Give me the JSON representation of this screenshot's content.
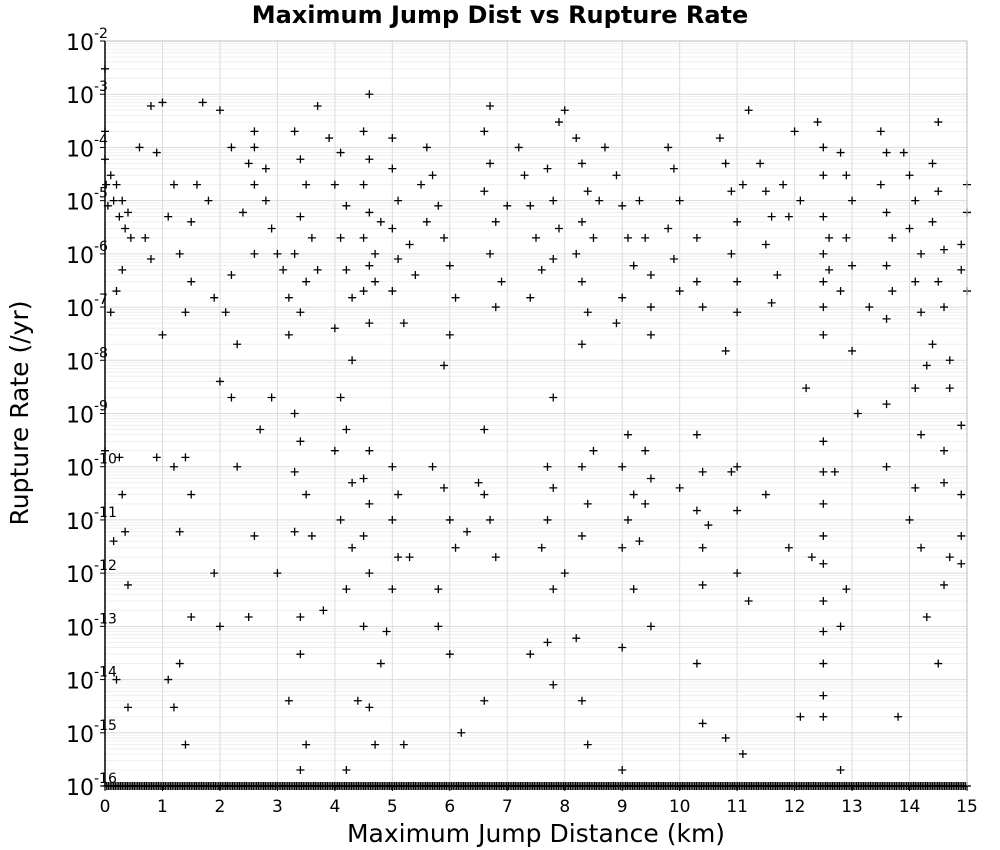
{
  "chart_data": {
    "type": "scatter",
    "title": "Maximum Jump Dist vs Rupture Rate",
    "xlabel": "Maximum Jump Distance (km)",
    "ylabel": "Rupture Rate (/yr)",
    "xlim": [
      0,
      15
    ],
    "ylim": [
      1e-16,
      0.01
    ],
    "y_scale": "log",
    "grid": true,
    "marker": "plus",
    "marker_color": "#000000",
    "x_ticks": [
      "0",
      "1",
      "2",
      "3",
      "4",
      "5",
      "6",
      "7",
      "8",
      "9",
      "10",
      "11",
      "12",
      "13",
      "14",
      "15"
    ],
    "y_ticks": [
      {
        "base": "10",
        "exp": "-16"
      },
      {
        "base": "10",
        "exp": "-15"
      },
      {
        "base": "10",
        "exp": "-14"
      },
      {
        "base": "10",
        "exp": "-13"
      },
      {
        "base": "10",
        "exp": "-12"
      },
      {
        "base": "10",
        "exp": "-11"
      },
      {
        "base": "10",
        "exp": "-10"
      },
      {
        "base": "10",
        "exp": "-9"
      },
      {
        "base": "10",
        "exp": "-8"
      },
      {
        "base": "10",
        "exp": "-7"
      },
      {
        "base": "10",
        "exp": "-6"
      },
      {
        "base": "10",
        "exp": "-5"
      },
      {
        "base": "10",
        "exp": "-4"
      },
      {
        "base": "10",
        "exp": "-3"
      },
      {
        "base": "10",
        "exp": "-2"
      }
    ],
    "points": [
      [
        0.0,
        0.003
      ],
      [
        0.0,
        0.0002
      ],
      [
        0.0,
        6e-05
      ],
      [
        0.02,
        2e-05
      ],
      [
        0.05,
        8e-06
      ],
      [
        0.1,
        3e-05
      ],
      [
        0.15,
        1e-05
      ],
      [
        0.2,
        2e-05
      ],
      [
        0.25,
        5e-06
      ],
      [
        0.3,
        1e-05
      ],
      [
        0.35,
        3e-06
      ],
      [
        0.4,
        6e-06
      ],
      [
        0.45,
        2e-06
      ],
      [
        0.3,
        5e-07
      ],
      [
        0.2,
        2e-07
      ],
      [
        0.1,
        8e-08
      ],
      [
        0.25,
        1.5e-10
      ],
      [
        0.3,
        3e-11
      ],
      [
        0.35,
        6e-12
      ],
      [
        0.4,
        6e-13
      ],
      [
        0.2,
        1e-14
      ],
      [
        0.4,
        3e-15
      ],
      [
        0.0,
        2e-10
      ],
      [
        0.15,
        4e-12
      ],
      [
        0.8,
        0.0006
      ],
      [
        1.0,
        0.0007
      ],
      [
        0.6,
        0.0001
      ],
      [
        0.9,
        8e-05
      ],
      [
        1.2,
        2e-05
      ],
      [
        1.1,
        5e-06
      ],
      [
        0.8,
        8e-07
      ],
      [
        0.7,
        2e-06
      ],
      [
        1.3,
        1e-06
      ],
      [
        1.5,
        3e-07
      ],
      [
        1.4,
        8e-08
      ],
      [
        1.0,
        3e-08
      ],
      [
        1.6,
        2e-05
      ],
      [
        1.8,
        1e-05
      ],
      [
        1.5,
        4e-06
      ],
      [
        0.9,
        1.5e-10
      ],
      [
        1.2,
        1e-10
      ],
      [
        1.4,
        1.5e-10
      ],
      [
        1.5,
        3e-11
      ],
      [
        1.3,
        6e-12
      ],
      [
        1.5,
        1.5e-13
      ],
      [
        1.3,
        2e-14
      ],
      [
        1.2,
        3e-15
      ],
      [
        1.4,
        6e-16
      ],
      [
        1.1,
        1e-14
      ],
      [
        1.9,
        1e-12
      ],
      [
        1.7,
        0.0007
      ],
      [
        2.0,
        0.0005
      ],
      [
        2.2,
        0.0001
      ],
      [
        2.5,
        5e-05
      ],
      [
        2.6,
        2e-05
      ],
      [
        2.4,
        6e-06
      ],
      [
        2.6,
        1e-06
      ],
      [
        2.2,
        4e-07
      ],
      [
        1.9,
        1.5e-07
      ],
      [
        2.1,
        8e-08
      ],
      [
        2.3,
        2e-08
      ],
      [
        2.0,
        4e-09
      ],
      [
        2.2,
        2e-09
      ],
      [
        2.3,
        1e-10
      ],
      [
        2.0,
        1e-13
      ],
      [
        2.6,
        0.0002
      ],
      [
        2.6,
        0.0001
      ],
      [
        2.8,
        4e-05
      ],
      [
        2.8,
        1e-05
      ],
      [
        2.9,
        3e-06
      ],
      [
        3.0,
        1e-06
      ],
      [
        3.1,
        5e-07
      ],
      [
        3.2,
        1.5e-07
      ],
      [
        2.9,
        2e-09
      ],
      [
        2.7,
        5e-10
      ],
      [
        2.6,
        5e-12
      ],
      [
        2.5,
        1.5e-13
      ],
      [
        3.0,
        1e-12
      ],
      [
        3.3,
        0.0002
      ],
      [
        3.4,
        6e-05
      ],
      [
        3.5,
        2e-05
      ],
      [
        3.4,
        5e-06
      ],
      [
        3.3,
        1e-06
      ],
      [
        3.5,
        3e-07
      ],
      [
        3.4,
        8e-08
      ],
      [
        3.6,
        2e-06
      ],
      [
        3.7,
        5e-07
      ],
      [
        3.2,
        3e-08
      ],
      [
        3.3,
        1e-09
      ],
      [
        3.4,
        3e-10
      ],
      [
        3.3,
        8e-11
      ],
      [
        3.5,
        3e-11
      ],
      [
        3.3,
        6e-12
      ],
      [
        3.4,
        1.5e-13
      ],
      [
        3.4,
        3e-14
      ],
      [
        3.5,
        6e-16
      ],
      [
        3.4,
        2e-16
      ],
      [
        3.2,
        4e-15
      ],
      [
        3.6,
        5e-12
      ],
      [
        3.8,
        2e-13
      ],
      [
        3.7,
        0.0006
      ],
      [
        3.9,
        0.00015
      ],
      [
        4.1,
        8e-05
      ],
      [
        4.0,
        2e-05
      ],
      [
        4.2,
        8e-06
      ],
      [
        4.1,
        2e-06
      ],
      [
        4.2,
        5e-07
      ],
      [
        4.3,
        1.5e-07
      ],
      [
        4.0,
        4e-08
      ],
      [
        4.3,
        1e-08
      ],
      [
        4.1,
        2e-09
      ],
      [
        4.2,
        5e-10
      ],
      [
        4.0,
        2e-10
      ],
      [
        4.3,
        5e-11
      ],
      [
        4.1,
        1e-11
      ],
      [
        4.3,
        3e-12
      ],
      [
        4.2,
        5e-13
      ],
      [
        4.4,
        4e-15
      ],
      [
        4.2,
        2e-16
      ],
      [
        4.6,
        0.001
      ],
      [
        4.5,
        0.0002
      ],
      [
        4.6,
        6e-05
      ],
      [
        4.5,
        2e-05
      ],
      [
        4.6,
        6e-06
      ],
      [
        4.5,
        2e-06
      ],
      [
        4.6,
        6e-07
      ],
      [
        4.5,
        2e-07
      ],
      [
        4.6,
        5e-08
      ],
      [
        4.7,
        1e-06
      ],
      [
        4.8,
        4e-06
      ],
      [
        4.7,
        3e-07
      ],
      [
        4.6,
        2e-10
      ],
      [
        4.5,
        6e-11
      ],
      [
        4.6,
        2e-11
      ],
      [
        4.5,
        5e-12
      ],
      [
        4.6,
        1e-12
      ],
      [
        4.5,
        1e-13
      ],
      [
        4.6,
        3e-15
      ],
      [
        4.7,
        6e-16
      ],
      [
        4.8,
        2e-14
      ],
      [
        5.0,
        0.00015
      ],
      [
        5.0,
        4e-05
      ],
      [
        5.1,
        1e-05
      ],
      [
        5.0,
        3e-06
      ],
      [
        5.1,
        8e-07
      ],
      [
        5.0,
        2e-07
      ],
      [
        5.2,
        5e-08
      ],
      [
        5.3,
        1.5e-06
      ],
      [
        5.4,
        4e-07
      ],
      [
        5.0,
        1e-10
      ],
      [
        5.1,
        3e-11
      ],
      [
        5.0,
        1e-11
      ],
      [
        5.1,
        2e-12
      ],
      [
        5.0,
        5e-13
      ],
      [
        4.9,
        8e-14
      ],
      [
        5.2,
        6e-16
      ],
      [
        5.3,
        2e-12
      ],
      [
        5.6,
        0.0001
      ],
      [
        5.7,
        3e-05
      ],
      [
        5.8,
        8e-06
      ],
      [
        5.9,
        2e-06
      ],
      [
        6.0,
        6e-07
      ],
      [
        6.1,
        1.5e-07
      ],
      [
        6.0,
        3e-08
      ],
      [
        5.9,
        8e-09
      ],
      [
        5.5,
        2e-05
      ],
      [
        5.6,
        4e-06
      ],
      [
        5.7,
        1e-10
      ],
      [
        5.9,
        4e-11
      ],
      [
        6.0,
        1e-11
      ],
      [
        6.1,
        3e-12
      ],
      [
        5.8,
        1e-13
      ],
      [
        6.0,
        3e-14
      ],
      [
        6.2,
        1e-15
      ],
      [
        5.8,
        5e-13
      ],
      [
        6.3,
        6e-12
      ],
      [
        6.6,
        0.0002
      ],
      [
        6.7,
        0.0006
      ],
      [
        6.7,
        5e-05
      ],
      [
        6.6,
        1.5e-05
      ],
      [
        6.8,
        4e-06
      ],
      [
        6.7,
        1e-06
      ],
      [
        6.9,
        3e-07
      ],
      [
        6.8,
        1e-07
      ],
      [
        7.0,
        8e-06
      ],
      [
        6.6,
        3e-11
      ],
      [
        6.7,
        1e-11
      ],
      [
        6.6,
        5e-10
      ],
      [
        6.6,
        4e-15
      ],
      [
        6.8,
        2e-12
      ],
      [
        6.5,
        5e-11
      ],
      [
        7.2,
        0.0001
      ],
      [
        7.3,
        3e-05
      ],
      [
        7.4,
        8e-06
      ],
      [
        7.5,
        2e-06
      ],
      [
        7.6,
        5e-07
      ],
      [
        7.4,
        1.5e-07
      ],
      [
        7.7,
        4e-05
      ],
      [
        7.8,
        1e-05
      ],
      [
        7.9,
        3e-06
      ],
      [
        7.8,
        8e-07
      ],
      [
        7.9,
        0.0003
      ],
      [
        8.0,
        0.0005
      ],
      [
        7.8,
        2e-09
      ],
      [
        7.7,
        1e-10
      ],
      [
        7.8,
        4e-11
      ],
      [
        7.7,
        1e-11
      ],
      [
        7.6,
        3e-12
      ],
      [
        7.8,
        5e-13
      ],
      [
        7.7,
        5e-14
      ],
      [
        7.8,
        8e-15
      ],
      [
        7.4,
        3e-14
      ],
      [
        8.0,
        1e-12
      ],
      [
        8.2,
        0.00015
      ],
      [
        8.3,
        5e-05
      ],
      [
        8.4,
        1.5e-05
      ],
      [
        8.3,
        4e-06
      ],
      [
        8.2,
        1e-06
      ],
      [
        8.3,
        3e-07
      ],
      [
        8.4,
        8e-08
      ],
      [
        8.3,
        2e-08
      ],
      [
        8.6,
        1e-05
      ],
      [
        8.5,
        2e-06
      ],
      [
        8.3,
        1e-10
      ],
      [
        8.4,
        2e-11
      ],
      [
        8.3,
        5e-12
      ],
      [
        8.2,
        6e-14
      ],
      [
        8.4,
        6e-16
      ],
      [
        8.5,
        2e-10
      ],
      [
        8.3,
        4e-15
      ],
      [
        8.7,
        0.0001
      ],
      [
        8.9,
        3e-05
      ],
      [
        9.0,
        8e-06
      ],
      [
        9.1,
        2e-06
      ],
      [
        9.2,
        6e-07
      ],
      [
        9.0,
        1.5e-07
      ],
      [
        8.9,
        5e-08
      ],
      [
        9.3,
        1e-05
      ],
      [
        9.4,
        2e-06
      ],
      [
        9.5,
        4e-07
      ],
      [
        9.5,
        1e-07
      ],
      [
        9.5,
        3e-08
      ],
      [
        9.1,
        4e-10
      ],
      [
        9.0,
        1e-10
      ],
      [
        9.2,
        3e-11
      ],
      [
        9.1,
        1e-11
      ],
      [
        9.0,
        3e-12
      ],
      [
        9.4,
        2e-10
      ],
      [
        9.5,
        6e-11
      ],
      [
        9.4,
        2e-11
      ],
      [
        9.3,
        4e-12
      ],
      [
        9.2,
        5e-13
      ],
      [
        9.5,
        1e-13
      ],
      [
        9.0,
        4e-14
      ],
      [
        9.0,
        2e-16
      ],
      [
        9.8,
        0.0001
      ],
      [
        9.9,
        4e-05
      ],
      [
        10.0,
        1e-05
      ],
      [
        9.8,
        3e-06
      ],
      [
        9.9,
        8e-07
      ],
      [
        10.0,
        2e-07
      ],
      [
        10.3,
        3e-07
      ],
      [
        10.4,
        1e-07
      ],
      [
        10.3,
        2e-06
      ],
      [
        10.0,
        4e-11
      ],
      [
        10.3,
        4e-10
      ],
      [
        10.4,
        8e-11
      ],
      [
        10.3,
        1.5e-11
      ],
      [
        10.4,
        3e-12
      ],
      [
        10.4,
        6e-13
      ],
      [
        10.3,
        2e-14
      ],
      [
        10.4,
        1.5e-15
      ],
      [
        10.5,
        8e-12
      ],
      [
        10.7,
        0.00015
      ],
      [
        10.8,
        5e-05
      ],
      [
        10.9,
        1.5e-05
      ],
      [
        11.0,
        4e-06
      ],
      [
        10.9,
        1e-06
      ],
      [
        11.0,
        3e-07
      ],
      [
        11.0,
        8e-08
      ],
      [
        10.8,
        1.5e-08
      ],
      [
        11.2,
        0.0005
      ],
      [
        11.1,
        2e-05
      ],
      [
        11.0,
        1e-10
      ],
      [
        10.9,
        8e-11
      ],
      [
        11.0,
        1.5e-11
      ],
      [
        11.2,
        3e-13
      ],
      [
        11.1,
        4e-16
      ],
      [
        10.8,
        8e-16
      ],
      [
        11.0,
        1e-12
      ],
      [
        11.5,
        3e-11
      ],
      [
        11.4,
        5e-05
      ],
      [
        11.5,
        1.5e-05
      ],
      [
        11.6,
        5e-06
      ],
      [
        11.5,
        1.5e-06
      ],
      [
        11.7,
        4e-07
      ],
      [
        11.6,
        1.2e-07
      ],
      [
        11.8,
        2e-05
      ],
      [
        11.9,
        5e-06
      ],
      [
        12.0,
        0.0002
      ],
      [
        12.1,
        1e-05
      ],
      [
        12.2,
        3e-09
      ],
      [
        12.3,
        2e-12
      ],
      [
        12.1,
        2e-15
      ],
      [
        11.9,
        3e-12
      ],
      [
        12.4,
        0.0003
      ],
      [
        12.5,
        0.0001
      ],
      [
        12.5,
        3e-05
      ],
      [
        12.5,
        5e-06
      ],
      [
        12.5,
        1e-06
      ],
      [
        12.5,
        3e-07
      ],
      [
        12.5,
        1e-07
      ],
      [
        12.5,
        3e-08
      ],
      [
        12.6,
        2e-06
      ],
      [
        12.6,
        5e-07
      ],
      [
        12.5,
        3e-10
      ],
      [
        12.5,
        8e-11
      ],
      [
        12.5,
        2e-11
      ],
      [
        12.5,
        5e-12
      ],
      [
        12.5,
        1.5e-12
      ],
      [
        12.5,
        3e-13
      ],
      [
        12.5,
        8e-14
      ],
      [
        12.5,
        2e-14
      ],
      [
        12.5,
        5e-15
      ],
      [
        12.5,
        2e-15
      ],
      [
        12.7,
        8e-11
      ],
      [
        12.8,
        1e-13
      ],
      [
        12.9,
        5e-13
      ],
      [
        12.8,
        8e-05
      ],
      [
        12.9,
        3e-05
      ],
      [
        13.0,
        1e-05
      ],
      [
        12.9,
        2e-06
      ],
      [
        13.0,
        6e-07
      ],
      [
        12.8,
        2e-07
      ],
      [
        13.0,
        1.5e-08
      ],
      [
        12.8,
        2e-16
      ],
      [
        13.1,
        1e-09
      ],
      [
        13.3,
        1e-07
      ],
      [
        13.5,
        0.0002
      ],
      [
        13.6,
        8e-05
      ],
      [
        13.5,
        2e-05
      ],
      [
        13.6,
        6e-06
      ],
      [
        13.7,
        2e-06
      ],
      [
        13.6,
        6e-07
      ],
      [
        13.7,
        2e-07
      ],
      [
        13.6,
        6e-08
      ],
      [
        13.6,
        1.5e-09
      ],
      [
        13.6,
        1e-10
      ],
      [
        13.8,
        2e-15
      ],
      [
        13.9,
        8e-05
      ],
      [
        14.0,
        3e-05
      ],
      [
        14.1,
        1e-05
      ],
      [
        14.0,
        3e-06
      ],
      [
        14.2,
        1e-06
      ],
      [
        14.1,
        3e-07
      ],
      [
        14.2,
        8e-08
      ],
      [
        14.3,
        8e-09
      ],
      [
        14.1,
        3e-09
      ],
      [
        14.2,
        4e-10
      ],
      [
        14.1,
        4e-11
      ],
      [
        14.0,
        1e-11
      ],
      [
        14.2,
        3e-12
      ],
      [
        14.3,
        1.5e-13
      ],
      [
        14.5,
        0.0003
      ],
      [
        14.5,
        2e-14
      ],
      [
        14.6,
        6e-13
      ],
      [
        14.4,
        5e-05
      ],
      [
        14.5,
        1.5e-05
      ],
      [
        14.4,
        4e-06
      ],
      [
        14.6,
        1.2e-06
      ],
      [
        14.5,
        3e-07
      ],
      [
        14.6,
        1e-07
      ],
      [
        14.4,
        2e-08
      ],
      [
        14.7,
        1e-08
      ],
      [
        14.7,
        3e-09
      ],
      [
        14.6,
        2e-10
      ],
      [
        14.6,
        5e-11
      ],
      [
        14.7,
        2e-12
      ],
      [
        14.9,
        6e-10
      ],
      [
        14.9,
        3e-11
      ],
      [
        14.9,
        5e-12
      ],
      [
        14.9,
        1.5e-12
      ],
      [
        15.0,
        2e-05
      ],
      [
        15.0,
        6e-06
      ],
      [
        14.9,
        1.5e-06
      ],
      [
        14.9,
        5e-07
      ],
      [
        15.0,
        2e-07
      ]
    ],
    "floor_band": {
      "y": 1e-16,
      "x_range": [
        0,
        15
      ]
    }
  }
}
